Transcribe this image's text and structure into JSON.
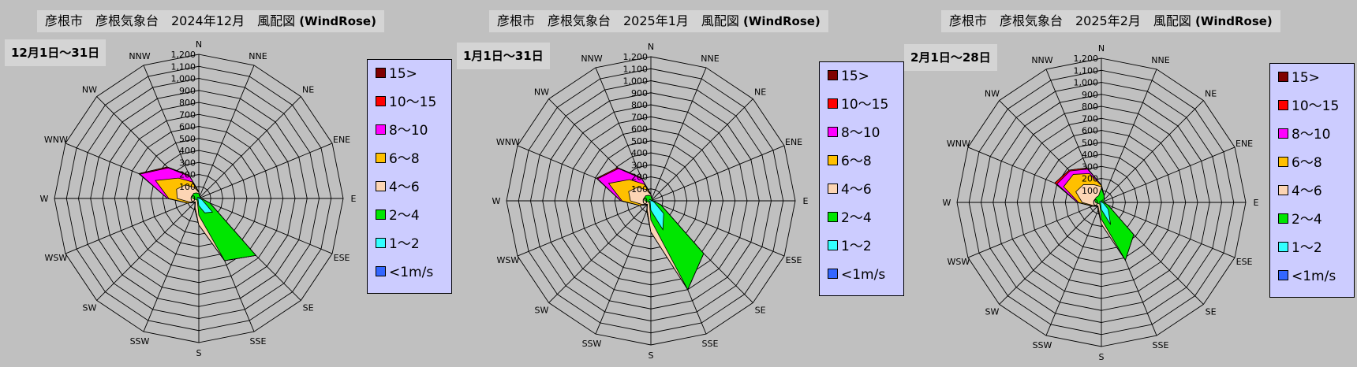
{
  "colors": {
    "15plus": "#7f0000",
    "10_15": "#ff0000",
    "8_10": "#ff00ff",
    "6_8": "#ffc000",
    "4_6": "#fcd5b4",
    "2_4": "#00e600",
    "1_2": "#33ffff",
    "lt1": "#3366ff"
  },
  "legend_labels": [
    "15>",
    "10～15",
    "8～10",
    "6～8",
    "4～6",
    "2～4",
    "1～2",
    "<1m/s"
  ],
  "legend_keys": [
    "15plus",
    "10_15",
    "8_10",
    "6_8",
    "4_6",
    "2_4",
    "1_2",
    "lt1"
  ],
  "directions": [
    "N",
    "NNE",
    "NE",
    "ENE",
    "E",
    "ESE",
    "SE",
    "SSE",
    "S",
    "SSW",
    "SW",
    "WSW",
    "W",
    "WNW",
    "NW",
    "NNW"
  ],
  "ticks": [
    "0",
    "100",
    "200",
    "300",
    "400",
    "500",
    "600",
    "700",
    "800",
    "900",
    "1,000",
    "1,100",
    "1,200"
  ],
  "panels": [
    {
      "title": "彦根市　彦根気象台　2024年12月　風配図",
      "title_suffix": "(WindRose)",
      "period": "12月1日～31日"
    },
    {
      "title": "彦根市　彦根気象台　2025年1月　風配図",
      "title_suffix": "(WindRose)",
      "period": "1月1日～31日"
    },
    {
      "title": "彦根市　彦根気象台　2025年2月　風配図",
      "title_suffix": "(WindRose)",
      "period": "2月1日～28日"
    }
  ],
  "chart_data": [
    {
      "type": "radar",
      "title": "彦根市　彦根気象台　2024年12月　風配図 (WindRose)",
      "period": "12月1日～31日",
      "directions": [
        "N",
        "NNE",
        "NE",
        "ENE",
        "E",
        "ESE",
        "SE",
        "SSE",
        "S",
        "SSW",
        "SW",
        "WSW",
        "W",
        "WNW",
        "NW",
        "NNW"
      ],
      "rlim": [
        0,
        1200
      ],
      "stacked": true,
      "series": [
        {
          "name": "<1m/s",
          "color_key": "lt1",
          "values": [
            2,
            2,
            2,
            2,
            2,
            2,
            2,
            2,
            2,
            2,
            2,
            2,
            2,
            2,
            2,
            2
          ]
        },
        {
          "name": "1～2",
          "color_key": "1_2",
          "values": [
            8,
            5,
            5,
            8,
            10,
            30,
            160,
            130,
            60,
            15,
            10,
            10,
            15,
            15,
            15,
            10
          ]
        },
        {
          "name": "2～4",
          "color_key": "2_4",
          "values": [
            40,
            20,
            15,
            15,
            20,
            100,
            670,
            560,
            140,
            30,
            20,
            25,
            50,
            60,
            60,
            50
          ]
        },
        {
          "name": "4～6",
          "color_key": "4_6",
          "values": [
            50,
            20,
            15,
            15,
            20,
            100,
            670,
            560,
            220,
            80,
            40,
            80,
            180,
            200,
            160,
            100
          ]
        },
        {
          "name": "6～8",
          "color_key": "6_8",
          "values": [
            55,
            20,
            15,
            15,
            20,
            100,
            670,
            560,
            220,
            90,
            45,
            100,
            250,
            390,
            240,
            150
          ]
        },
        {
          "name": "8～10",
          "color_key": "8_10",
          "values": [
            55,
            20,
            15,
            15,
            20,
            100,
            670,
            560,
            220,
            90,
            45,
            100,
            260,
            530,
            360,
            200
          ]
        },
        {
          "name": "10～15",
          "color_key": "10_15",
          "values": [
            55,
            20,
            15,
            15,
            20,
            100,
            670,
            560,
            220,
            90,
            45,
            100,
            260,
            540,
            370,
            210
          ]
        },
        {
          "name": "15>",
          "color_key": "15plus",
          "values": [
            55,
            20,
            15,
            15,
            20,
            100,
            670,
            560,
            220,
            90,
            45,
            100,
            260,
            540,
            370,
            210
          ]
        }
      ]
    },
    {
      "type": "radar",
      "title": "彦根市　彦根気象台　2025年1月　風配図 (WindRose)",
      "period": "1月1日～31日",
      "directions": [
        "N",
        "NNE",
        "NE",
        "ENE",
        "E",
        "ESE",
        "SE",
        "SSE",
        "S",
        "SSW",
        "SW",
        "WSW",
        "W",
        "WNW",
        "NW",
        "NNW"
      ],
      "rlim": [
        0,
        1200
      ],
      "stacked": true,
      "series": [
        {
          "name": "<1m/s",
          "color_key": "lt1",
          "values": [
            2,
            2,
            2,
            2,
            2,
            2,
            2,
            2,
            2,
            2,
            2,
            2,
            2,
            2,
            2,
            2
          ]
        },
        {
          "name": "1～2",
          "color_key": "1_2",
          "values": [
            8,
            5,
            5,
            8,
            10,
            30,
            150,
            260,
            80,
            15,
            10,
            10,
            15,
            15,
            15,
            10
          ]
        },
        {
          "name": "2～4",
          "color_key": "2_4",
          "values": [
            40,
            20,
            15,
            15,
            20,
            90,
            620,
            800,
            160,
            30,
            20,
            25,
            50,
            60,
            60,
            50
          ]
        },
        {
          "name": "4～6",
          "color_key": "4_6",
          "values": [
            50,
            20,
            15,
            15,
            20,
            90,
            620,
            800,
            260,
            80,
            40,
            80,
            170,
            200,
            160,
            100
          ]
        },
        {
          "name": "6～8",
          "color_key": "6_8",
          "values": [
            55,
            20,
            15,
            15,
            20,
            90,
            620,
            800,
            260,
            90,
            45,
            100,
            240,
            380,
            250,
            150
          ]
        },
        {
          "name": "8～10",
          "color_key": "8_10",
          "values": [
            55,
            20,
            15,
            15,
            20,
            90,
            620,
            800,
            260,
            90,
            45,
            100,
            250,
            480,
            380,
            200
          ]
        },
        {
          "name": "10～15",
          "color_key": "10_15",
          "values": [
            55,
            20,
            15,
            15,
            20,
            90,
            620,
            800,
            260,
            90,
            45,
            100,
            250,
            490,
            390,
            210
          ]
        },
        {
          "name": "15>",
          "color_key": "15plus",
          "values": [
            55,
            20,
            15,
            15,
            20,
            90,
            620,
            800,
            260,
            90,
            45,
            100,
            250,
            490,
            390,
            210
          ]
        }
      ]
    },
    {
      "type": "radar",
      "title": "彦根市　彦根気象台　2025年2月　風配図 (WindRose)",
      "period": "2月1日～28日",
      "directions": [
        "N",
        "NNE",
        "NE",
        "ENE",
        "E",
        "ESE",
        "SE",
        "SSE",
        "S",
        "SSW",
        "SW",
        "WSW",
        "W",
        "WNW",
        "NW",
        "NNW"
      ],
      "rlim": [
        0,
        1200
      ],
      "stacked": true,
      "series": [
        {
          "name": "<1m/s",
          "color_key": "lt1",
          "values": [
            2,
            2,
            2,
            2,
            2,
            2,
            2,
            2,
            2,
            2,
            2,
            2,
            2,
            2,
            2,
            2
          ]
        },
        {
          "name": "1～2",
          "color_key": "1_2",
          "values": [
            10,
            20,
            8,
            8,
            8,
            20,
            80,
            200,
            60,
            15,
            10,
            10,
            15,
            15,
            15,
            10
          ]
        },
        {
          "name": "2～4",
          "color_key": "2_4",
          "values": [
            120,
            60,
            30,
            20,
            20,
            60,
            380,
            520,
            140,
            30,
            20,
            25,
            50,
            60,
            60,
            60
          ]
        },
        {
          "name": "4～6",
          "color_key": "4_6",
          "values": [
            130,
            60,
            30,
            20,
            20,
            60,
            380,
            520,
            180,
            60,
            40,
            70,
            160,
            230,
            210,
            160
          ]
        },
        {
          "name": "6～8",
          "color_key": "6_8",
          "values": [
            140,
            60,
            30,
            20,
            20,
            60,
            380,
            520,
            180,
            70,
            45,
            80,
            190,
            340,
            330,
            260
          ]
        },
        {
          "name": "8～10",
          "color_key": "8_10",
          "values": [
            145,
            60,
            30,
            20,
            20,
            60,
            380,
            520,
            180,
            70,
            45,
            80,
            200,
            400,
            370,
            300
          ]
        },
        {
          "name": "10～15",
          "color_key": "10_15",
          "values": [
            145,
            60,
            30,
            20,
            20,
            60,
            380,
            520,
            180,
            70,
            45,
            80,
            200,
            420,
            380,
            310
          ]
        },
        {
          "name": "15>",
          "color_key": "15plus",
          "values": [
            145,
            60,
            30,
            20,
            20,
            60,
            380,
            520,
            180,
            70,
            45,
            80,
            200,
            420,
            380,
            310
          ]
        }
      ]
    }
  ]
}
